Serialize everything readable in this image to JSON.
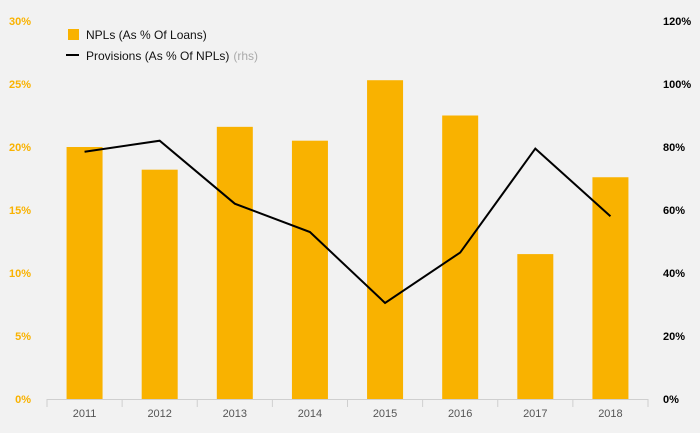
{
  "chart_data": {
    "type": "bar",
    "categories": [
      "2011",
      "2012",
      "2013",
      "2014",
      "2015",
      "2016",
      "2017",
      "2018"
    ],
    "series": [
      {
        "name": "NPLs (As % Of Loans)",
        "type": "bar",
        "axis": "left",
        "values": [
          20.0,
          18.2,
          21.6,
          20.5,
          25.3,
          22.5,
          11.5,
          17.6
        ]
      },
      {
        "name": "Provisions (As % Of NPLs)",
        "name_suffix": "(rhs)",
        "type": "line",
        "axis": "right",
        "values": [
          78.5,
          82,
          62,
          53,
          30.5,
          46.5,
          79.5,
          58
        ]
      }
    ],
    "y_left": {
      "ticks": [
        "0%",
        "5%",
        "10%",
        "15%",
        "20%",
        "25%",
        "30%"
      ],
      "range": [
        0,
        30
      ]
    },
    "y_right": {
      "ticks": [
        "0%",
        "20%",
        "40%",
        "60%",
        "80%",
        "100%",
        "120%"
      ],
      "range": [
        0,
        120
      ]
    },
    "legend_position": "top-left",
    "grid": false,
    "colors": {
      "bar": "#f9b200",
      "line": "#000000",
      "left_ticks": "#f9b200",
      "right_ticks": "#000000",
      "muted": "#aaaaaa",
      "background": "#f2f2f2"
    }
  }
}
